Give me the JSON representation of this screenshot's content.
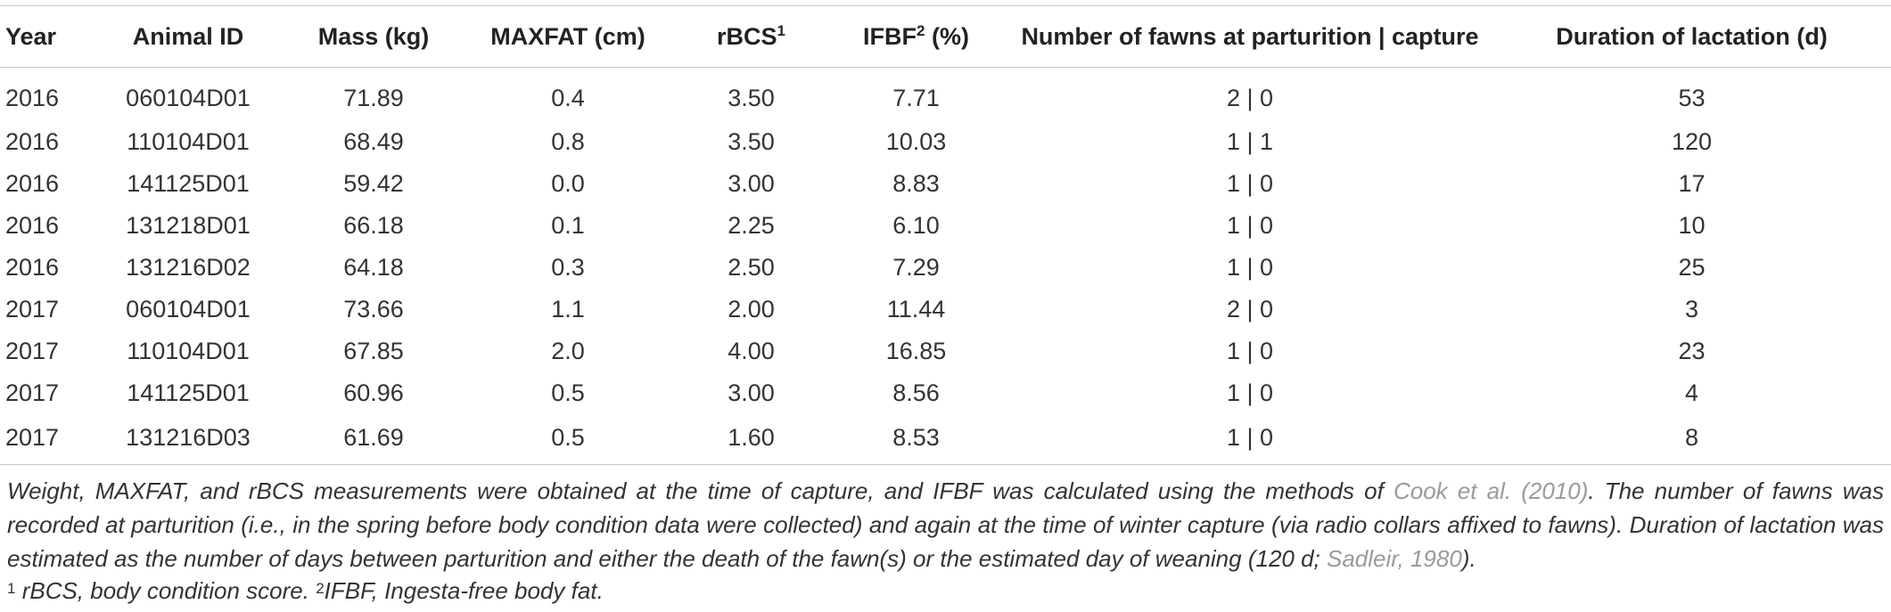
{
  "table": {
    "headers": {
      "year": "Year",
      "animal_id": "Animal ID",
      "mass": "Mass (kg)",
      "maxfat": "MAXFAT (cm)",
      "rbcs": "rBCS",
      "rbcs_sup": "1",
      "ifbf": "IFBF",
      "ifbf_sup": "2",
      "ifbf_unit": " (%)",
      "fawns": "Number of fawns at parturition | capture",
      "lactation": "Duration of lactation (d)"
    },
    "rows": [
      {
        "year": "2016",
        "animal_id": "060104D01",
        "mass": "71.89",
        "maxfat": "0.4",
        "rbcs": "3.50",
        "ifbf": "7.71",
        "fawns": "2 | 0",
        "lactation": "53"
      },
      {
        "year": "2016",
        "animal_id": "110104D01",
        "mass": "68.49",
        "maxfat": "0.8",
        "rbcs": "3.50",
        "ifbf": "10.03",
        "fawns": "1 | 1",
        "lactation": "120"
      },
      {
        "year": "2016",
        "animal_id": "141125D01",
        "mass": "59.42",
        "maxfat": "0.0",
        "rbcs": "3.00",
        "ifbf": "8.83",
        "fawns": "1 | 0",
        "lactation": "17"
      },
      {
        "year": "2016",
        "animal_id": "131218D01",
        "mass": "66.18",
        "maxfat": "0.1",
        "rbcs": "2.25",
        "ifbf": "6.10",
        "fawns": "1 | 0",
        "lactation": "10"
      },
      {
        "year": "2016",
        "animal_id": "131216D02",
        "mass": "64.18",
        "maxfat": "0.3",
        "rbcs": "2.50",
        "ifbf": "7.29",
        "fawns": "1 | 0",
        "lactation": "25"
      },
      {
        "year": "2017",
        "animal_id": "060104D01",
        "mass": "73.66",
        "maxfat": "1.1",
        "rbcs": "2.00",
        "ifbf": "11.44",
        "fawns": "2 | 0",
        "lactation": "3"
      },
      {
        "year": "2017",
        "animal_id": "110104D01",
        "mass": "67.85",
        "maxfat": "2.0",
        "rbcs": "4.00",
        "ifbf": "16.85",
        "fawns": "1 | 0",
        "lactation": "23"
      },
      {
        "year": "2017",
        "animal_id": "141125D01",
        "mass": "60.96",
        "maxfat": "0.5",
        "rbcs": "3.00",
        "ifbf": "8.56",
        "fawns": "1 | 0",
        "lactation": "4"
      },
      {
        "year": "2017",
        "animal_id": "131216D03",
        "mass": "61.69",
        "maxfat": "0.5",
        "rbcs": "1.60",
        "ifbf": "8.53",
        "fawns": "1 | 0",
        "lactation": "8"
      }
    ]
  },
  "footnote": {
    "part1": "Weight, MAXFAT, and rBCS measurements were obtained at the time of capture, and IFBF was calculated using the methods of ",
    "ref1": "Cook et al. (2010)",
    "part2": ". The number of fawns was recorded at parturition (i.e., in the spring before body condition data were collected) and again at the time of winter capture (via radio collars affixed to fawns). Duration of lactation was estimated as the number of days between parturition and either the death of the fawn(s) or the estimated day of weaning (120 d; ",
    "ref2": "Sadleir, 1980",
    "part3": ").",
    "note1_sup": "1",
    "note1_text": " rBCS, body condition score. ",
    "note2_sup": "2",
    "note2_text": "IFBF, Ingesta-free body fat."
  }
}
